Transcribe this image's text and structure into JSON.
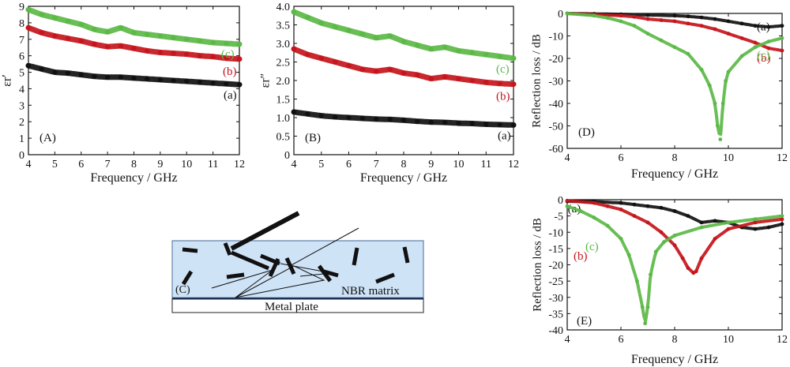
{
  "colors": {
    "a": "#111111",
    "b": "#c4161c",
    "c": "#5cb847",
    "slab_fill": "#cfe3f7",
    "slab_stroke": "#4a6a9a"
  },
  "chart_data": [
    {
      "id": "A",
      "type": "scatter",
      "panel_label": "(A)",
      "xlabel": "Frequency / GHz",
      "ylabel": "εr′",
      "xlim": [
        4,
        12
      ],
      "ylim": [
        0,
        9
      ],
      "xticks": [
        "4",
        "5",
        "6",
        "7",
        "8",
        "9",
        "10",
        "11",
        "12"
      ],
      "yticks": [
        "0",
        "1",
        "2",
        "3",
        "4",
        "5",
        "6",
        "7",
        "8",
        "9"
      ],
      "series": [
        {
          "key": "a",
          "label": "(a)",
          "x": [
            4,
            4.5,
            5,
            5.5,
            6,
            6.5,
            7,
            7.5,
            8,
            8.5,
            9,
            9.5,
            10,
            10.5,
            11,
            11.5,
            12
          ],
          "y": [
            5.4,
            5.2,
            5.0,
            4.95,
            4.85,
            4.75,
            4.7,
            4.7,
            4.65,
            4.6,
            4.55,
            4.5,
            4.45,
            4.4,
            4.35,
            4.3,
            4.25
          ]
        },
        {
          "key": "b",
          "label": "(b)",
          "x": [
            4,
            4.5,
            5,
            5.5,
            6,
            6.5,
            7,
            7.5,
            8,
            8.5,
            9,
            9.5,
            10,
            10.5,
            11,
            11.5,
            12
          ],
          "y": [
            7.7,
            7.4,
            7.2,
            7.05,
            6.9,
            6.7,
            6.55,
            6.6,
            6.45,
            6.3,
            6.2,
            6.15,
            6.1,
            6.0,
            5.95,
            5.85,
            5.8
          ]
        },
        {
          "key": "c",
          "label": "(c)",
          "x": [
            4,
            4.5,
            5,
            5.5,
            6,
            6.5,
            7,
            7.5,
            8,
            8.5,
            9,
            9.5,
            10,
            10.5,
            11,
            11.5,
            12
          ],
          "y": [
            8.8,
            8.5,
            8.3,
            8.1,
            7.9,
            7.6,
            7.45,
            7.7,
            7.4,
            7.3,
            7.2,
            7.1,
            7.0,
            6.9,
            6.8,
            6.75,
            6.7
          ]
        }
      ]
    },
    {
      "id": "B",
      "type": "scatter",
      "panel_label": "(B)",
      "xlabel": "Frequency / GHz",
      "ylabel": "εr″",
      "xlim": [
        4,
        12
      ],
      "ylim": [
        0,
        4
      ],
      "xticks": [
        "4",
        "5",
        "6",
        "7",
        "8",
        "9",
        "10",
        "11",
        "12"
      ],
      "yticks": [
        "0",
        "0.5",
        "1.0",
        "1.5",
        "2.0",
        "2.5",
        "3.0",
        "3.5",
        "4.0"
      ],
      "series": [
        {
          "key": "a",
          "label": "(a)",
          "x": [
            4,
            4.5,
            5,
            5.5,
            6,
            6.5,
            7,
            7.5,
            8,
            8.5,
            9,
            9.5,
            10,
            10.5,
            11,
            11.5,
            12
          ],
          "y": [
            1.15,
            1.1,
            1.05,
            1.02,
            1.0,
            0.98,
            0.96,
            0.95,
            0.93,
            0.9,
            0.88,
            0.87,
            0.85,
            0.84,
            0.82,
            0.81,
            0.8
          ]
        },
        {
          "key": "b",
          "label": "(b)",
          "x": [
            4,
            4.5,
            5,
            5.5,
            6,
            6.5,
            7,
            7.5,
            8,
            8.5,
            9,
            9.5,
            10,
            10.5,
            11,
            11.5,
            12
          ],
          "y": [
            2.85,
            2.7,
            2.6,
            2.5,
            2.4,
            2.3,
            2.25,
            2.3,
            2.2,
            2.15,
            2.05,
            2.1,
            2.05,
            2.0,
            1.95,
            1.92,
            1.9
          ]
        },
        {
          "key": "c",
          "label": "(c)",
          "x": [
            4,
            4.5,
            5,
            5.5,
            6,
            6.5,
            7,
            7.5,
            8,
            8.5,
            9,
            9.5,
            10,
            10.5,
            11,
            11.5,
            12
          ],
          "y": [
            3.85,
            3.7,
            3.55,
            3.45,
            3.35,
            3.25,
            3.15,
            3.2,
            3.05,
            2.95,
            2.85,
            2.9,
            2.8,
            2.75,
            2.7,
            2.65,
            2.6
          ]
        }
      ]
    },
    {
      "id": "D",
      "type": "scatter",
      "panel_label": "(D)",
      "xlabel": "Frequency / GHz",
      "ylabel": "Reflection loss / dB",
      "xlim": [
        4,
        12
      ],
      "ylim": [
        -60,
        0
      ],
      "xticks": [
        "4",
        "6",
        "8",
        "10",
        "12"
      ],
      "yticks": [
        "0",
        "-10",
        "-20",
        "-30",
        "-40",
        "-50",
        "-60"
      ],
      "series": [
        {
          "key": "a",
          "label": "(a)",
          "x": [
            4,
            5,
            6,
            7,
            8,
            8.5,
            9,
            9.5,
            10,
            10.5,
            11,
            11.5,
            12
          ],
          "y": [
            0,
            -0.2,
            -0.4,
            -0.7,
            -1.0,
            -1.3,
            -1.8,
            -2.5,
            -3.5,
            -4.5,
            -5.5,
            -6.0,
            -5.5
          ]
        },
        {
          "key": "b",
          "label": "(b)",
          "x": [
            4,
            5,
            6,
            6.5,
            7,
            7.5,
            8,
            8.5,
            9,
            9.5,
            10,
            10.5,
            11,
            11.5,
            12
          ],
          "y": [
            0,
            -0.5,
            -1.0,
            -1.5,
            -2.5,
            -3.0,
            -3.5,
            -4.5,
            -5.5,
            -7.0,
            -9.0,
            -11.0,
            -13.0,
            -15.5,
            -16.5
          ]
        },
        {
          "key": "c",
          "label": "(c)",
          "x": [
            4,
            5,
            5.5,
            6,
            6.5,
            7,
            7.5,
            8,
            8.5,
            9,
            9.3,
            9.5,
            9.6,
            9.7,
            9.8,
            9.9,
            10,
            10.5,
            11,
            11.5,
            12
          ],
          "y": [
            0,
            -1.0,
            -2.0,
            -3.5,
            -5.5,
            -9.0,
            -12.0,
            -15.0,
            -18.0,
            -25.0,
            -32.0,
            -40.0,
            -50.0,
            -56.0,
            -40.0,
            -30.0,
            -26.0,
            -19.0,
            -15.0,
            -12.5,
            -11.0
          ]
        }
      ]
    },
    {
      "id": "E",
      "type": "scatter",
      "panel_label": "(E)",
      "xlabel": "Frequency / GHz",
      "ylabel": "Reflection loss / dB",
      "xlim": [
        4,
        12
      ],
      "ylim": [
        -40,
        0
      ],
      "xticks": [
        "4",
        "6",
        "8",
        "10",
        "12"
      ],
      "yticks": [
        "0",
        "-5",
        "-10",
        "-15",
        "-20",
        "-25",
        "-30",
        "-35",
        "-40"
      ],
      "series": [
        {
          "key": "a",
          "label": "(a)",
          "x": [
            4,
            5,
            6,
            6.5,
            7,
            7.5,
            8,
            8.5,
            9,
            9.5,
            10,
            10.5,
            11,
            11.5,
            12
          ],
          "y": [
            -0.5,
            -0.6,
            -1.0,
            -1.5,
            -2.0,
            -2.5,
            -3.5,
            -5.0,
            -7.0,
            -6.5,
            -7.0,
            -8.5,
            -9.0,
            -8.5,
            -7.5
          ]
        },
        {
          "key": "b",
          "label": "(b)",
          "x": [
            4,
            5,
            5.5,
            6,
            6.5,
            7,
            7.5,
            8,
            8.3,
            8.5,
            8.7,
            8.8,
            9,
            9.5,
            10,
            11,
            12
          ],
          "y": [
            -0.3,
            -1.0,
            -2.0,
            -3.0,
            -5.0,
            -7.0,
            -10.0,
            -14.0,
            -18.0,
            -21.0,
            -22.5,
            -22.0,
            -18.0,
            -12.0,
            -9.0,
            -7.0,
            -6.0
          ]
        },
        {
          "key": "c",
          "label": "(c)",
          "x": [
            4,
            4.5,
            5,
            5.5,
            6,
            6.3,
            6.6,
            6.8,
            6.9,
            7.0,
            7.1,
            7.3,
            7.6,
            8,
            9,
            10,
            11,
            12
          ],
          "y": [
            -2.0,
            -3.5,
            -5.5,
            -8.0,
            -12.0,
            -17.0,
            -25.0,
            -33.0,
            -38.0,
            -33.0,
            -23.0,
            -16.0,
            -13.0,
            -11.0,
            -8.5,
            -7.0,
            -6.0,
            -5.0
          ]
        }
      ]
    }
  ],
  "schematic": {
    "panel_label": "(C)",
    "matrix_label": "NBR matrix",
    "plate_label": "Metal plate"
  }
}
